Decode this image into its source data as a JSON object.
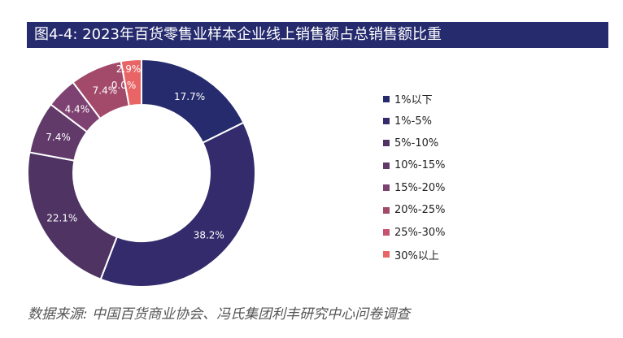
{
  "title": "图4-4: 2023年百货零售业样本企业线上销售额占总销售额比重",
  "source": "数据来源: 中国百货商业协会、冯氏集团利丰研究中心问卷调查",
  "chart_data": {
    "type": "donut",
    "title": "图4-4: 2023年百货零售业样本企业线上销售额占总销售额比重",
    "legend_position": "right",
    "start_angle": "12 o'clock",
    "direction": "clockwise",
    "categories": [
      "1%以下",
      "1%-5%",
      "5%-10%",
      "10%-15%",
      "15%-20%",
      "20%-25%",
      "25%-30%",
      "30%以上"
    ],
    "values": [
      17.7,
      38.2,
      22.1,
      7.4,
      4.4,
      7.4,
      0.0,
      2.9
    ],
    "labels": [
      "17.7%",
      "38.2%",
      "22.1%",
      "7.4%",
      "4.4%",
      "7.4%",
      "0.0%",
      "2.9%"
    ],
    "colors": [
      "#262b6e",
      "#332b6c",
      "#4f3363",
      "#613a6a",
      "#7d4272",
      "#a34a6a",
      "#c5536c",
      "#e96464"
    ]
  }
}
